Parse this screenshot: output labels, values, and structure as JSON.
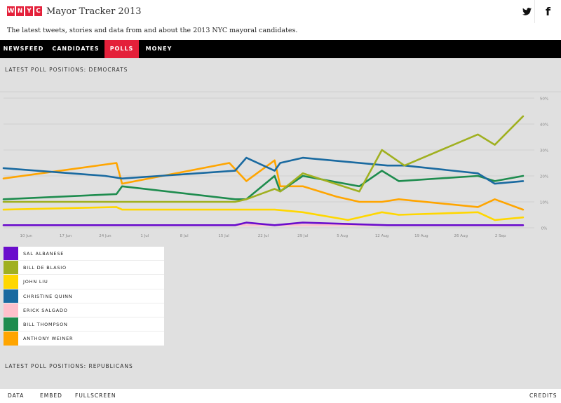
{
  "header": {
    "logo_letters": [
      "W",
      "N",
      "Y",
      "C"
    ],
    "title": "Mayor Tracker 2013",
    "subtitle": "The latest tweets, stories and data from and about the 2013 NYC mayoral candidates.",
    "social": [
      {
        "name": "twitter-icon"
      },
      {
        "name": "facebook-icon",
        "glyph": "f"
      }
    ]
  },
  "nav": {
    "items": [
      {
        "label": "NEWSFEED",
        "active": false
      },
      {
        "label": "CANDIDATES",
        "active": false
      },
      {
        "label": "POLLS",
        "active": true
      },
      {
        "label": "MONEY",
        "active": false
      }
    ]
  },
  "sections": {
    "democrats_title": "LATEST POLL POSITIONS: DEMOCRATS",
    "republicans_title": "LATEST POLL POSITIONS: REPUBLICANS"
  },
  "footer": {
    "data": "DATA",
    "embed": "EMBED",
    "fullscreen": "FULLSCREEN",
    "credits": "CREDITS"
  },
  "colors": {
    "brand_red": "#e4203a",
    "nav_bg": "#000000",
    "page_bg": "#e0e0e0"
  },
  "chart_data": {
    "type": "line",
    "title": "LATEST POLL POSITIONS: DEMOCRATS",
    "x_ticks": [
      "10 Jun",
      "17 Jun",
      "24 Jun",
      "1 Jul",
      "8 Jul",
      "15 Jul",
      "22 Jul",
      "29 Jul",
      "5 Aug",
      "12 Aug",
      "19 Aug",
      "26 Aug",
      "2 Sep"
    ],
    "x_tick_dates": [
      "2013-06-10",
      "2013-06-17",
      "2013-06-24",
      "2013-07-01",
      "2013-07-08",
      "2013-07-15",
      "2013-07-22",
      "2013-07-29",
      "2013-08-05",
      "2013-08-12",
      "2013-08-19",
      "2013-08-26",
      "2013-09-02"
    ],
    "xlim": [
      "2013-06-06",
      "2013-09-08"
    ],
    "y_ticks": [
      "0%",
      "10%",
      "20%",
      "30%",
      "40%",
      "50%"
    ],
    "y_tick_values": [
      0,
      10,
      20,
      30,
      40,
      50
    ],
    "ylim": [
      0,
      50
    ],
    "grid": true,
    "legend_placement": "below-left",
    "series": [
      {
        "name": "SAL ALBANESE",
        "color": "#6a0dcc",
        "points": [
          [
            "2013-06-06",
            1
          ],
          [
            "2013-06-27",
            1
          ],
          [
            "2013-07-17",
            1
          ],
          [
            "2013-07-19",
            2
          ],
          [
            "2013-07-24",
            1
          ],
          [
            "2013-07-29",
            2
          ],
          [
            "2013-08-13",
            1
          ],
          [
            "2013-08-30",
            1
          ],
          [
            "2013-09-01",
            1
          ],
          [
            "2013-09-06",
            1
          ]
        ]
      },
      {
        "name": "BILL DE BLASIO",
        "color": "#a0b020",
        "points": [
          [
            "2013-06-06",
            10
          ],
          [
            "2013-06-27",
            10
          ],
          [
            "2013-07-17",
            10
          ],
          [
            "2013-07-19",
            11
          ],
          [
            "2013-07-24",
            15
          ],
          [
            "2013-07-25",
            14
          ],
          [
            "2013-07-29",
            21
          ],
          [
            "2013-08-08",
            14
          ],
          [
            "2013-08-12",
            30
          ],
          [
            "2013-08-16",
            24
          ],
          [
            "2013-08-29",
            36
          ],
          [
            "2013-09-01",
            32
          ],
          [
            "2013-09-06",
            43
          ]
        ]
      },
      {
        "name": "JOHN LIU",
        "color": "#ffd700",
        "points": [
          [
            "2013-06-06",
            7
          ],
          [
            "2013-06-26",
            8
          ],
          [
            "2013-06-27",
            7
          ],
          [
            "2013-07-17",
            7
          ],
          [
            "2013-07-24",
            7
          ],
          [
            "2013-07-29",
            6
          ],
          [
            "2013-08-06",
            3
          ],
          [
            "2013-08-12",
            6
          ],
          [
            "2013-08-15",
            5
          ],
          [
            "2013-08-29",
            6
          ],
          [
            "2013-09-01",
            3
          ],
          [
            "2013-09-06",
            4
          ]
        ]
      },
      {
        "name": "CHRISTINE QUINN",
        "color": "#1a6aa0",
        "points": [
          [
            "2013-06-06",
            23
          ],
          [
            "2013-06-24",
            20
          ],
          [
            "2013-06-27",
            19
          ],
          [
            "2013-07-17",
            22
          ],
          [
            "2013-07-19",
            27
          ],
          [
            "2013-07-24",
            22
          ],
          [
            "2013-07-25",
            25
          ],
          [
            "2013-07-29",
            27
          ],
          [
            "2013-08-13",
            24
          ],
          [
            "2013-08-16",
            24
          ],
          [
            "2013-08-29",
            21
          ],
          [
            "2013-09-01",
            17
          ],
          [
            "2013-09-06",
            18
          ]
        ]
      },
      {
        "name": "ERICK SALGADO",
        "color": "#ffc0cb",
        "points": [
          [
            "2013-06-06",
            1
          ],
          [
            "2013-06-27",
            1
          ],
          [
            "2013-07-24",
            1
          ],
          [
            "2013-07-29",
            1
          ],
          [
            "2013-08-13",
            1
          ],
          [
            "2013-08-29",
            1
          ],
          [
            "2013-09-06",
            1
          ]
        ]
      },
      {
        "name": "BILL THOMPSON",
        "color": "#1e8c4e",
        "points": [
          [
            "2013-06-06",
            11
          ],
          [
            "2013-06-26",
            13
          ],
          [
            "2013-06-27",
            16
          ],
          [
            "2013-07-17",
            11
          ],
          [
            "2013-07-19",
            11
          ],
          [
            "2013-07-24",
            20
          ],
          [
            "2013-07-25",
            14
          ],
          [
            "2013-07-29",
            20
          ],
          [
            "2013-08-08",
            16
          ],
          [
            "2013-08-12",
            22
          ],
          [
            "2013-08-15",
            18
          ],
          [
            "2013-08-29",
            20
          ],
          [
            "2013-09-01",
            18
          ],
          [
            "2013-09-06",
            20
          ]
        ]
      },
      {
        "name": "ANTHONY WEINER",
        "color": "#ffa500",
        "points": [
          [
            "2013-06-06",
            19
          ],
          [
            "2013-06-26",
            25
          ],
          [
            "2013-06-27",
            17
          ],
          [
            "2013-07-16",
            25
          ],
          [
            "2013-07-19",
            18
          ],
          [
            "2013-07-24",
            26
          ],
          [
            "2013-07-25",
            16
          ],
          [
            "2013-07-29",
            16
          ],
          [
            "2013-08-04",
            12
          ],
          [
            "2013-08-08",
            10
          ],
          [
            "2013-08-12",
            10
          ],
          [
            "2013-08-15",
            11
          ],
          [
            "2013-08-29",
            8
          ],
          [
            "2013-09-01",
            11
          ],
          [
            "2013-09-06",
            7
          ]
        ]
      }
    ]
  }
}
